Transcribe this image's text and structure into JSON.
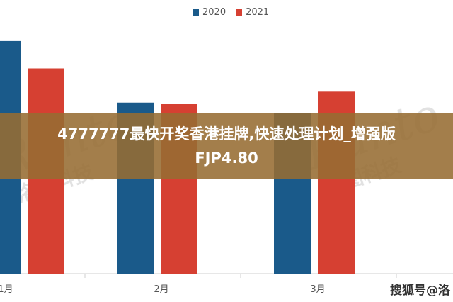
{
  "chart_data": {
    "type": "bar",
    "categories": [
      "1月",
      "2月",
      "3月"
    ],
    "series": [
      {
        "name": "2020",
        "color": "#1a5a8a",
        "values": [
          340,
          250,
          235
        ]
      },
      {
        "name": "2021",
        "color": "#d64032",
        "values": [
          300,
          248,
          266
        ]
      }
    ],
    "ylim": [
      0,
      400
    ],
    "grid": false,
    "legend": "top-center"
  },
  "overlay": {
    "title_line1": "4777777最快开奖香港挂牌,快速处理计划_增强版",
    "title_line2": "FJP4.80"
  },
  "watermark": {
    "brand": "Runto",
    "cn": "洛图科技"
  },
  "source_label": "搜狐号@洛"
}
